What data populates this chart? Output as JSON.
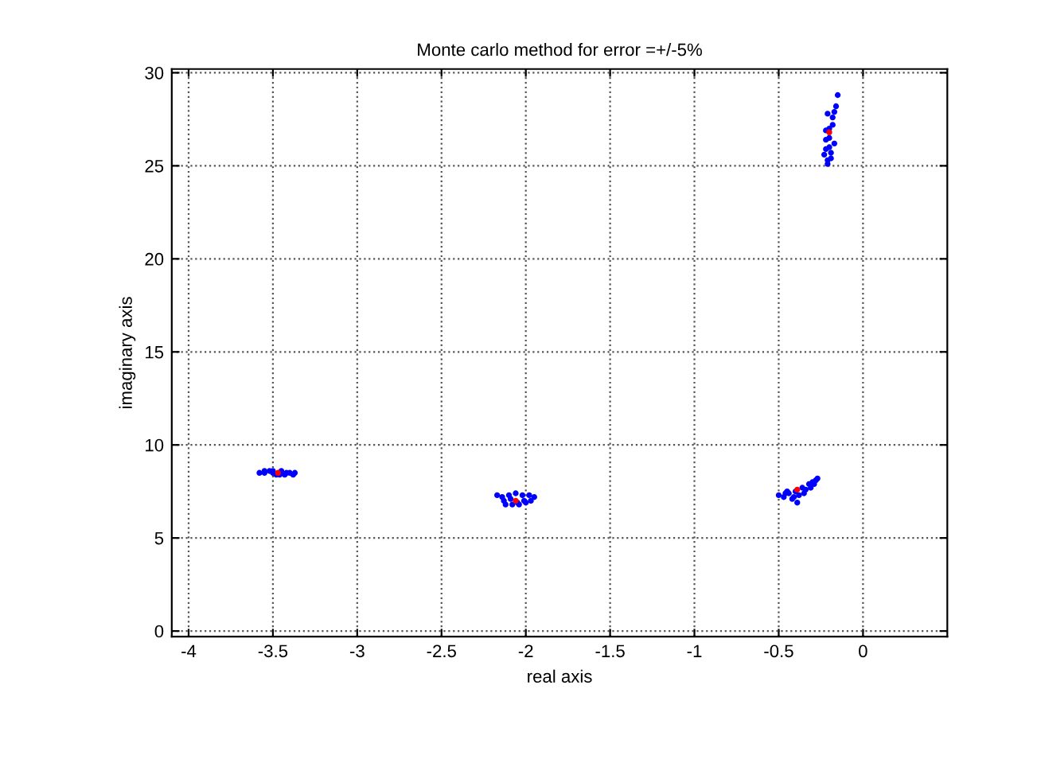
{
  "chart_data": {
    "type": "scatter",
    "title": "Monte carlo method for error =+/-5%",
    "xlabel": "real axis",
    "ylabel": "imaginary axis",
    "xlim": [
      -4.1,
      0.5
    ],
    "ylim": [
      -0.3,
      30.2
    ],
    "xticks": [
      -4,
      -3.5,
      -3,
      -2.5,
      -2,
      -1.5,
      -1,
      -0.5,
      0
    ],
    "yticks": [
      0,
      5,
      10,
      15,
      20,
      25,
      30
    ],
    "grid": true,
    "marker": "circle",
    "legend": false,
    "series": [
      {
        "color": "#0000ff",
        "x": [
          -3.58,
          -3.55,
          -3.52,
          -3.5,
          -3.48,
          -3.45,
          -3.43,
          -3.4,
          -3.38,
          -3.37,
          -3.55,
          -3.46,
          -3.42,
          -3.5,
          -2.17,
          -2.14,
          -2.1,
          -2.06,
          -2.02,
          -1.98,
          -1.95,
          -2.12,
          -2.08,
          -2.04,
          -2.0,
          -1.97,
          -2.13,
          -2.09,
          -2.05,
          -2.01,
          -0.5,
          -0.47,
          -0.45,
          -0.42,
          -0.4,
          -0.38,
          -0.36,
          -0.34,
          -0.32,
          -0.3,
          -0.28,
          -0.27,
          -0.44,
          -0.39,
          -0.35,
          -0.31,
          -0.29,
          -0.41,
          -0.46,
          -0.23,
          -0.22,
          -0.21,
          -0.2,
          -0.19,
          -0.18,
          -0.17,
          -0.16,
          -0.15,
          -0.22,
          -0.21,
          -0.2,
          -0.19,
          -0.18,
          -0.2,
          -0.17,
          -0.22,
          -0.21
        ],
        "values": [
          8.5,
          8.6,
          8.6,
          8.5,
          8.4,
          8.6,
          8.4,
          8.5,
          8.4,
          8.5,
          8.5,
          8.4,
          8.5,
          8.6,
          7.3,
          7.2,
          7.3,
          7.4,
          7.3,
          7.3,
          7.2,
          6.8,
          6.8,
          6.8,
          6.9,
          7.0,
          7.0,
          7.1,
          6.9,
          7.0,
          7.3,
          7.2,
          7.5,
          7.1,
          7.5,
          7.3,
          7.7,
          7.6,
          7.9,
          8.0,
          8.1,
          8.2,
          7.4,
          6.9,
          7.4,
          7.7,
          7.9,
          7.2,
          7.4,
          25.6,
          26.4,
          25.1,
          27.0,
          25.7,
          27.6,
          26.2,
          28.2,
          28.8,
          26.9,
          27.8,
          26.0,
          25.4,
          27.2,
          26.5,
          27.9,
          25.9,
          25.3
        ]
      },
      {
        "color": "#ff0000",
        "x": [
          -3.47,
          -2.06,
          -0.39,
          -0.2
        ],
        "values": [
          8.5,
          7.0,
          7.6,
          26.8
        ]
      }
    ]
  }
}
